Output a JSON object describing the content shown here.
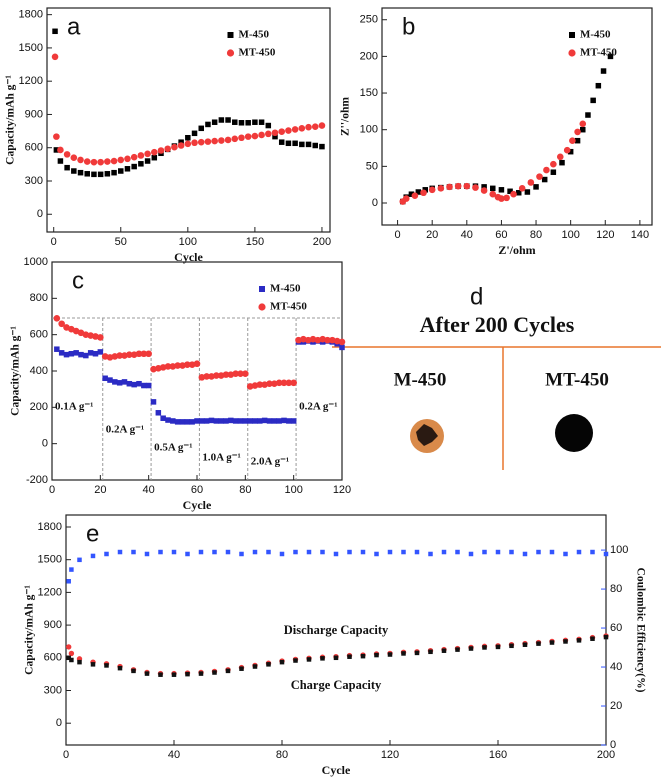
{
  "chart_data": [
    {
      "type": "scatter",
      "panel_label": "a",
      "xlabel": "Cycle",
      "ylabel": "Capacity/mAh g⁻¹",
      "xlim": [
        -5,
        206
      ],
      "ylim": [
        -160,
        1860
      ],
      "xticks": [
        0,
        50,
        100,
        150,
        200
      ],
      "yticks": [
        0,
        300,
        600,
        900,
        1200,
        1500,
        1800
      ],
      "legend": "upper center",
      "x": [
        1,
        2,
        5,
        10,
        15,
        20,
        25,
        30,
        35,
        40,
        45,
        50,
        55,
        60,
        65,
        70,
        75,
        80,
        85,
        90,
        95,
        100,
        105,
        110,
        115,
        120,
        125,
        130,
        135,
        140,
        145,
        150,
        155,
        160,
        165,
        170,
        175,
        180,
        185,
        190,
        195,
        200
      ],
      "series": [
        {
          "name": "M-450",
          "color": "#000000",
          "marker": "square",
          "values": [
            1650,
            580,
            480,
            420,
            390,
            375,
            365,
            360,
            360,
            365,
            375,
            390,
            410,
            430,
            455,
            480,
            510,
            550,
            585,
            615,
            650,
            690,
            730,
            775,
            810,
            830,
            850,
            850,
            830,
            825,
            825,
            830,
            830,
            800,
            700,
            650,
            640,
            640,
            630,
            630,
            620,
            610
          ]
        },
        {
          "name": "MT-450",
          "color": "#f03a3a",
          "marker": "circle",
          "values": [
            1420,
            700,
            580,
            540,
            510,
            490,
            475,
            470,
            470,
            475,
            480,
            490,
            500,
            515,
            530,
            545,
            560,
            575,
            590,
            605,
            620,
            635,
            645,
            650,
            655,
            660,
            665,
            670,
            680,
            690,
            700,
            705,
            715,
            725,
            735,
            745,
            755,
            765,
            775,
            785,
            790,
            800
          ]
        }
      ]
    },
    {
      "type": "scatter",
      "panel_label": "b",
      "xlabel": "Z'/ohm",
      "ylabel": "Z''/ohm",
      "xlim": [
        -9,
        147
      ],
      "ylim": [
        -30,
        266
      ],
      "xticks": [
        0,
        20,
        40,
        60,
        80,
        100,
        120,
        140
      ],
      "yticks": [
        0,
        50,
        100,
        150,
        200,
        250
      ],
      "legend": "upper right",
      "series": [
        {
          "name": "M-450",
          "color": "#000000",
          "marker": "square",
          "x": [
            3,
            5,
            8,
            12,
            16,
            20,
            25,
            30,
            35,
            40,
            45,
            50,
            55,
            60,
            65,
            70,
            75,
            80,
            85,
            90,
            95,
            100,
            104,
            107,
            110,
            113,
            116,
            119,
            123
          ],
          "values": [
            2,
            8,
            12,
            15,
            18,
            20,
            21,
            22,
            23,
            23,
            23,
            22,
            20,
            18,
            16,
            14,
            15,
            22,
            32,
            42,
            55,
            70,
            85,
            100,
            120,
            140,
            160,
            180,
            200
          ]
        },
        {
          "name": "MT-450",
          "color": "#f03a3a",
          "marker": "circle",
          "x": [
            3,
            5,
            10,
            15,
            20,
            25,
            30,
            35,
            40,
            45,
            50,
            55,
            58,
            60,
            63,
            67,
            72,
            77,
            82,
            86,
            90,
            94,
            98,
            101,
            104,
            107
          ],
          "values": [
            2,
            6,
            10,
            14,
            18,
            20,
            22,
            23,
            23,
            21,
            17,
            12,
            8,
            6,
            7,
            12,
            20,
            28,
            36,
            45,
            53,
            63,
            72,
            85,
            97,
            108
          ]
        }
      ]
    },
    {
      "type": "scatter",
      "panel_label": "c",
      "xlabel": "Cycle",
      "ylabel": "Capacity/mAh g⁻¹",
      "xlim": [
        0,
        120
      ],
      "ylim": [
        -200,
        1000
      ],
      "xticks": [
        0,
        20,
        40,
        60,
        80,
        100,
        120
      ],
      "yticks": [
        -200,
        0,
        200,
        400,
        600,
        800,
        1000
      ],
      "legend": "upper right",
      "dividers": [
        21,
        41,
        61,
        81,
        101
      ],
      "annotations": [
        "0.1A g⁻¹",
        "0.2A g⁻¹",
        "0.5A g⁻¹",
        "1.0A g⁻¹",
        "2.0A g⁻¹",
        "0.2A g⁻¹"
      ],
      "x": [
        2,
        4,
        6,
        8,
        10,
        12,
        14,
        16,
        18,
        20,
        22,
        24,
        26,
        28,
        30,
        32,
        34,
        36,
        38,
        40,
        42,
        44,
        46,
        48,
        50,
        52,
        54,
        56,
        58,
        60,
        62,
        64,
        66,
        68,
        70,
        72,
        74,
        76,
        78,
        80,
        82,
        84,
        86,
        88,
        90,
        92,
        94,
        96,
        98,
        100,
        102,
        104,
        106,
        108,
        110,
        112,
        114,
        116,
        118,
        120
      ],
      "series": [
        {
          "name": "M-450",
          "color": "#2b2bc4",
          "marker": "square",
          "values": [
            520,
            500,
            490,
            495,
            500,
            490,
            485,
            500,
            495,
            505,
            360,
            350,
            340,
            335,
            340,
            330,
            325,
            330,
            320,
            320,
            230,
            170,
            140,
            130,
            125,
            120,
            120,
            120,
            120,
            125,
            125,
            125,
            128,
            125,
            125,
            125,
            128,
            125,
            125,
            125,
            125,
            125,
            125,
            128,
            125,
            125,
            125,
            128,
            125,
            125,
            560,
            560,
            565,
            560,
            565,
            560,
            565,
            560,
            550,
            530
          ]
        },
        {
          "name": "MT-450",
          "color": "#f03a3a",
          "marker": "circle",
          "values": [
            690,
            660,
            640,
            630,
            620,
            610,
            600,
            595,
            590,
            585,
            480,
            475,
            480,
            485,
            485,
            490,
            490,
            495,
            495,
            495,
            410,
            415,
            420,
            425,
            425,
            430,
            430,
            435,
            435,
            440,
            365,
            370,
            370,
            375,
            375,
            380,
            380,
            385,
            385,
            385,
            315,
            320,
            325,
            325,
            330,
            330,
            335,
            335,
            335,
            335,
            570,
            575,
            570,
            575,
            570,
            575,
            570,
            570,
            565,
            560
          ]
        }
      ]
    },
    {
      "type": "scatter",
      "panel_label": "e",
      "xlabel": "Cycle",
      "ylabel": "Capacity/mAh g⁻¹",
      "y2label": "Coulombic Efficiency(%)",
      "xlim": [
        0,
        200
      ],
      "ylim": [
        -200,
        1910
      ],
      "y2lim": [
        0,
        118
      ],
      "xticks": [
        0,
        40,
        80,
        120,
        160,
        200
      ],
      "yticks": [
        0,
        300,
        600,
        900,
        1200,
        1500,
        1800
      ],
      "y2ticks": [
        0,
        20,
        40,
        60,
        80,
        100
      ],
      "x": [
        1,
        2,
        5,
        10,
        15,
        20,
        25,
        30,
        35,
        40,
        45,
        50,
        55,
        60,
        65,
        70,
        75,
        80,
        85,
        90,
        95,
        100,
        105,
        110,
        115,
        120,
        125,
        130,
        135,
        140,
        145,
        150,
        155,
        160,
        165,
        170,
        175,
        180,
        185,
        190,
        195,
        200
      ],
      "series": [
        {
          "name": "Discharge Capacity",
          "color": "#f03a3a",
          "marker": "circle",
          "values": [
            700,
            640,
            590,
            560,
            545,
            520,
            490,
            465,
            455,
            455,
            460,
            465,
            475,
            490,
            510,
            530,
            550,
            570,
            585,
            595,
            605,
            610,
            620,
            625,
            635,
            640,
            650,
            655,
            665,
            675,
            685,
            695,
            705,
            710,
            720,
            730,
            740,
            750,
            760,
            770,
            785,
            800
          ]
        },
        {
          "name": "Charge Capacity",
          "color": "#111111",
          "marker": "square",
          "values": [
            600,
            580,
            560,
            540,
            530,
            505,
            480,
            455,
            445,
            445,
            450,
            455,
            465,
            480,
            500,
            520,
            540,
            560,
            575,
            585,
            595,
            600,
            610,
            615,
            625,
            630,
            640,
            645,
            655,
            665,
            675,
            685,
            695,
            700,
            710,
            720,
            730,
            740,
            750,
            760,
            775,
            790
          ]
        },
        {
          "color": "#3355ff",
          "marker": "square",
          "axis": "y2",
          "values": [
            84,
            90,
            95,
            97,
            98,
            99,
            99,
            98,
            99,
            99,
            98,
            99,
            99,
            99,
            98,
            99,
            99,
            98,
            99,
            99,
            99,
            98,
            99,
            99,
            98,
            99,
            99,
            99,
            98,
            99,
            99,
            98,
            99,
            99,
            99,
            98,
            99,
            99,
            98,
            99,
            99,
            98
          ]
        }
      ]
    }
  ],
  "panel_d": {
    "label": "d",
    "title": "After 200 Cycles",
    "columns": [
      "M-450",
      "MT-450"
    ]
  }
}
